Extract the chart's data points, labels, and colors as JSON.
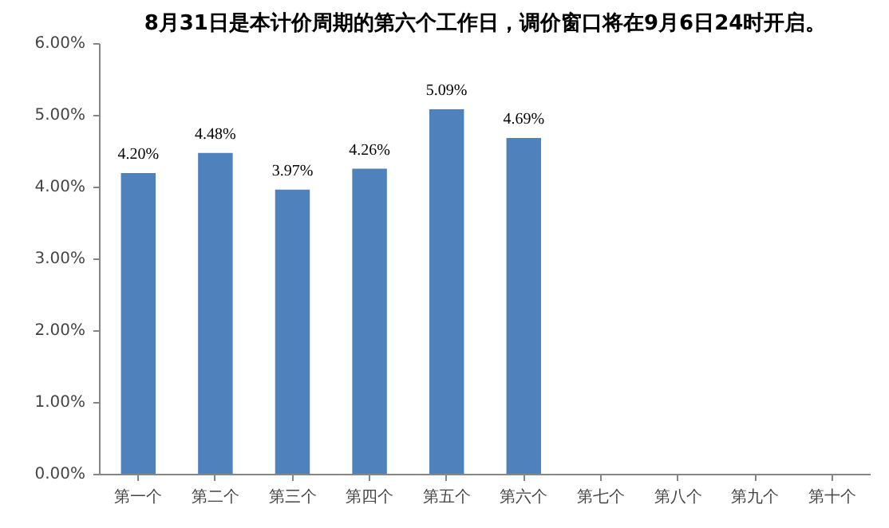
{
  "chart_data": {
    "type": "bar",
    "title": "8月31日是本计价周期的第六个工作日，调价窗口将在9月6日24时开启。",
    "categories": [
      "第一个",
      "第二个",
      "第三个",
      "第四个",
      "第五个",
      "第六个",
      "第七个",
      "第八个",
      "第九个",
      "第十个"
    ],
    "values": [
      4.2,
      4.48,
      3.97,
      4.26,
      5.09,
      4.69,
      null,
      null,
      null,
      null
    ],
    "value_labels": [
      "4.20%",
      "4.48%",
      "3.97%",
      "4.26%",
      "5.09%",
      "4.69%",
      null,
      null,
      null,
      null
    ],
    "color": "#4f81bd",
    "ylim": [
      0,
      6
    ],
    "yticks": [
      {
        "value": 0,
        "label": "0.00%"
      },
      {
        "value": 1,
        "label": "1.00%"
      },
      {
        "value": 2,
        "label": "2.00%"
      },
      {
        "value": 3,
        "label": "3.00%"
      },
      {
        "value": 4,
        "label": "4.00%"
      },
      {
        "value": 5,
        "label": "5.00%"
      },
      {
        "value": 6,
        "label": "6.00%"
      }
    ],
    "grid": false
  }
}
